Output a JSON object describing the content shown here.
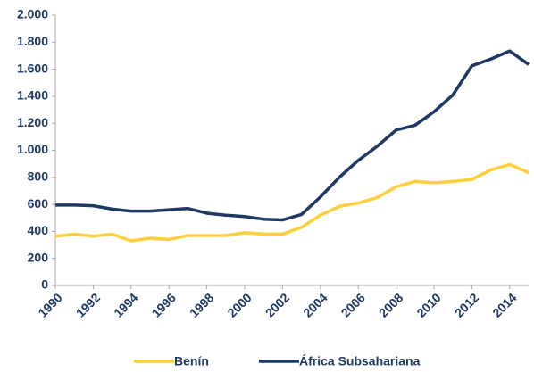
{
  "chart_data": {
    "type": "line",
    "x": [
      1990,
      1991,
      1992,
      1993,
      1994,
      1995,
      1996,
      1997,
      1998,
      1999,
      2000,
      2001,
      2002,
      2003,
      2004,
      2005,
      2006,
      2007,
      2008,
      2009,
      2010,
      2011,
      2012,
      2013,
      2014,
      2015
    ],
    "series": [
      {
        "name": "Benín",
        "color": "#fbd03b",
        "values": [
          365,
          380,
          365,
          380,
          330,
          350,
          340,
          370,
          370,
          370,
          390,
          380,
          380,
          430,
          520,
          585,
          610,
          650,
          730,
          770,
          760,
          770,
          785,
          855,
          895,
          835
        ]
      },
      {
        "name": "África Subsahariana",
        "color": "#1f3864",
        "values": [
          595,
          595,
          590,
          565,
          550,
          550,
          560,
          570,
          535,
          520,
          510,
          490,
          485,
          525,
          655,
          800,
          925,
          1030,
          1150,
          1185,
          1285,
          1410,
          1625,
          1675,
          1735,
          1635
        ]
      }
    ],
    "xlim": [
      1990,
      2015
    ],
    "xticks": [
      1990,
      1992,
      1994,
      1996,
      1998,
      2000,
      2002,
      2004,
      2006,
      2008,
      2010,
      2012,
      2014
    ],
    "ylim": [
      0,
      2000
    ],
    "yticks": [
      0,
      200,
      400,
      600,
      800,
      {
        "value": 1000,
        "label": "1.000"
      },
      {
        "value": 1200,
        "label": "1.200"
      },
      {
        "value": 1400,
        "label": "1.400"
      },
      {
        "value": 1600,
        "label": "1.600"
      },
      {
        "value": 1800,
        "label": "1.800"
      },
      {
        "value": 2000,
        "label": "2.000"
      }
    ],
    "legend": "bottom"
  }
}
